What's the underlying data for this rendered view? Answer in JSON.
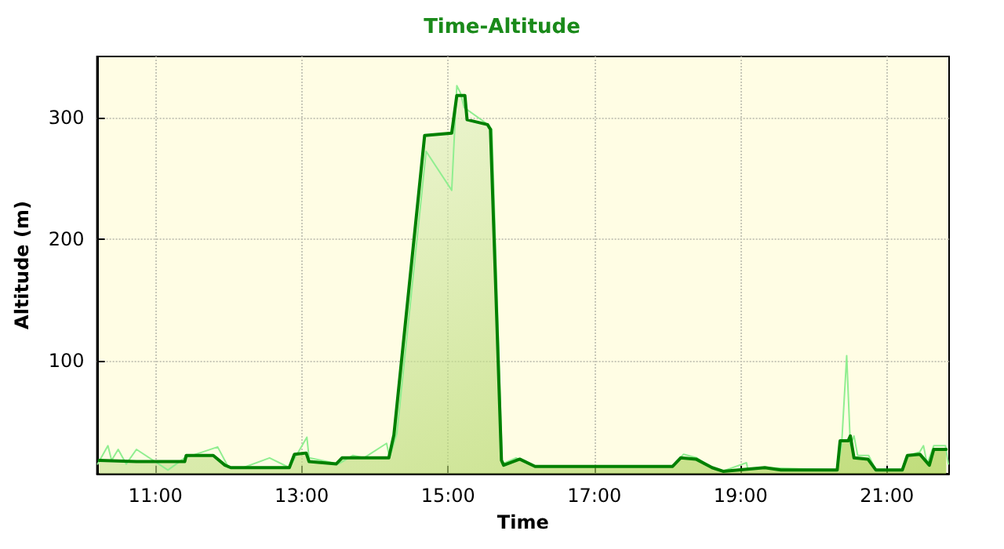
{
  "chart_data": {
    "type": "area",
    "title": "Time-Altitude",
    "xlabel": "Time",
    "ylabel": "Altitude (m)",
    "xlim": [
      10.2,
      21.85
    ],
    "xticks": [
      {
        "value": 11,
        "label": "11:00"
      },
      {
        "value": 13,
        "label": "13:00"
      },
      {
        "value": 15,
        "label": "15:00"
      },
      {
        "value": 17,
        "label": "17:00"
      },
      {
        "value": 19,
        "label": "19:00"
      },
      {
        "value": 21,
        "label": "21:00"
      }
    ],
    "ylim": [
      7,
      350
    ],
    "yticks": [
      100,
      200,
      300
    ],
    "grid": true,
    "marker": "none",
    "line_style": "solid",
    "series": [
      {
        "type": "line",
        "color": "#90ee90",
        "x": [
          10.21,
          10.35,
          10.4,
          10.49,
          10.6,
          10.74,
          11.17,
          11.4,
          11.85,
          12.0,
          12.2,
          12.56,
          12.83,
          13.07,
          13.1,
          13.5,
          13.7,
          13.85,
          14.16,
          14.2,
          14.3,
          14.7,
          15.05,
          15.12,
          15.17,
          15.22,
          15.5,
          15.6,
          15.74,
          15.93,
          16.2,
          18.07,
          18.22,
          18.4,
          18.6,
          18.75,
          19.08,
          19.1,
          19.3,
          20.32,
          20.38,
          20.45,
          20.5,
          20.55,
          20.6,
          20.75,
          20.85,
          21.2,
          21.3,
          21.45,
          21.5,
          21.55,
          21.64,
          21.8,
          21.84
        ],
        "values": [
          15,
          30,
          18,
          27,
          15,
          27,
          10,
          20,
          29,
          12,
          12,
          20,
          12,
          37,
          20,
          15,
          22,
          20,
          32,
          20,
          40,
          272,
          240,
          326,
          320,
          308,
          296,
          290,
          15,
          20,
          13,
          13,
          23,
          20,
          12,
          9,
          16,
          10,
          12,
          10,
          30,
          104,
          30,
          38,
          22,
          22,
          10,
          10,
          22,
          25,
          30,
          15,
          30,
          30,
          15
        ]
      },
      {
        "color": "#008000",
        "x": [
          10.23,
          10.74,
          11.4,
          11.42,
          11.79,
          11.95,
          12.03,
          12.83,
          12.9,
          13.06,
          13.1,
          13.47,
          13.55,
          13.84,
          14.19,
          14.26,
          14.68,
          15.05,
          15.12,
          15.23,
          15.26,
          15.54,
          15.58,
          15.73,
          15.76,
          15.98,
          16.19,
          18.07,
          18.18,
          18.39,
          18.61,
          18.76,
          19.33,
          19.55,
          20.32,
          20.36,
          20.47,
          20.5,
          20.55,
          20.74,
          20.85,
          21.21,
          21.28,
          21.45,
          21.58,
          21.64,
          21.81
        ],
        "values": [
          18,
          17,
          17,
          22,
          22,
          14,
          12,
          12,
          23,
          24,
          17,
          15,
          20,
          20,
          20,
          39,
          285,
          287,
          318,
          318,
          298,
          294,
          290,
          18,
          14,
          19,
          13,
          13,
          20,
          19,
          12,
          9,
          12,
          10,
          10,
          34,
          34,
          38,
          20,
          19,
          10,
          10,
          22,
          23,
          14,
          27,
          27
        ]
      }
    ]
  }
}
